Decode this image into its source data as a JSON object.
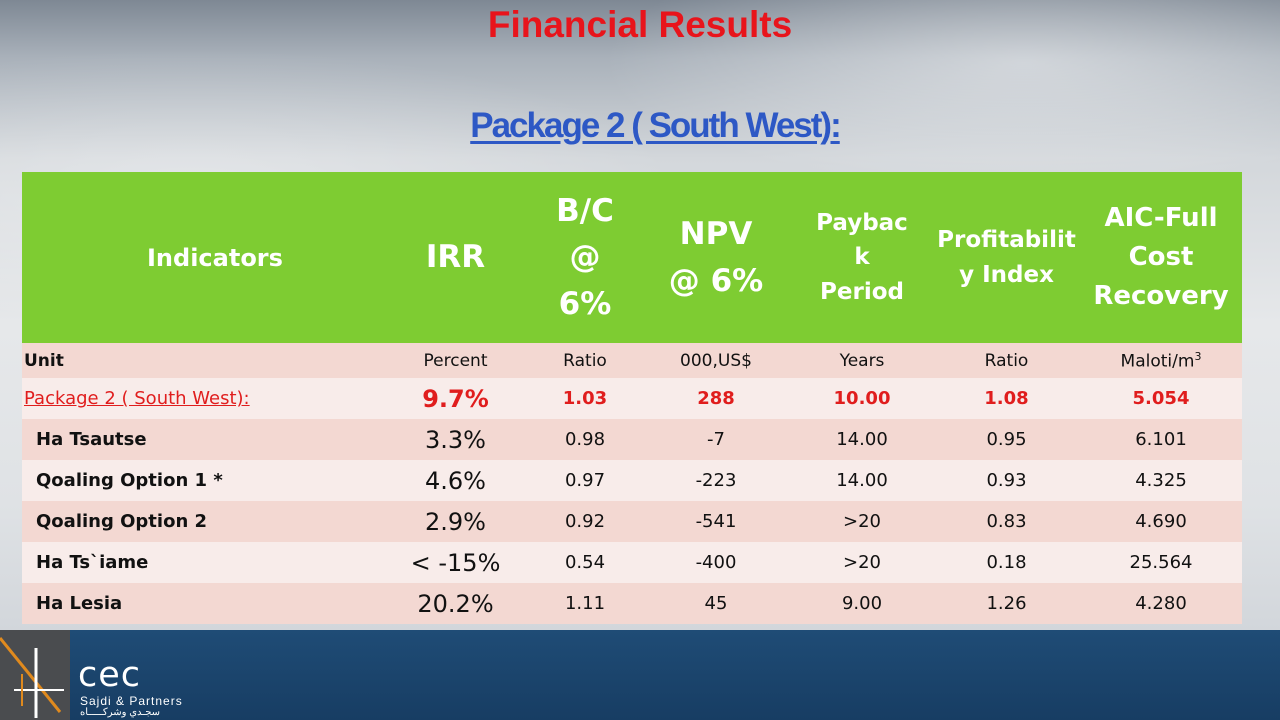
{
  "title": "Financial Results",
  "subtitle": "Package 2 ( South West):",
  "table": {
    "headers": {
      "indicators": "Indicators",
      "irr": "IRR",
      "bc_line1": "B/C",
      "bc_line2": "@",
      "bc_line3": "6%",
      "npv_line1": "NPV",
      "npv_line2": "@ 6%",
      "payback_line1": "Paybac",
      "payback_line2": "k",
      "payback_line3": "Period",
      "profit_line1": "Profitabilit",
      "profit_line2": "y Index",
      "aic_line1": "AIC-Full",
      "aic_line2": "Cost",
      "aic_line3": "Recovery"
    },
    "unit_row": {
      "label": "Unit",
      "irr": "Percent",
      "bc": "Ratio",
      "npv": "000,US$",
      "payback": "Years",
      "profit": "Ratio",
      "aic": "Maloti/m",
      "aic_sup": "3"
    },
    "package_row": {
      "label": "Package 2 ( South West):",
      "irr": "9.7%",
      "bc": "1.03",
      "npv": "288",
      "payback": "10.00",
      "profit": "1.08",
      "aic": "5.054"
    },
    "rows": [
      {
        "label": "Ha Tsautse",
        "irr": "3.3%",
        "bc": "0.98",
        "npv": "-7",
        "payback": "14.00",
        "profit": "0.95",
        "aic": "6.101"
      },
      {
        "label": "Qoaling Option 1 *",
        "irr": "4.6%",
        "bc": "0.97",
        "npv": "-223",
        "payback": "14.00",
        "profit": "0.93",
        "aic": "4.325"
      },
      {
        "label": "Qoaling Option 2",
        "irr": "2.9%",
        "bc": "0.92",
        "npv": "-541",
        "payback": ">20",
        "profit": "0.83",
        "aic": "4.690"
      },
      {
        "label": "Ha Ts`iame",
        "irr": "< -15%",
        "bc": "0.54",
        "npv": "-400",
        "payback": ">20",
        "profit": "0.18",
        "aic": "25.564"
      },
      {
        "label": "Ha Lesia",
        "irr": "20.2%",
        "bc": "1.11",
        "npv": "45",
        "payback": "9.00",
        "profit": "1.26",
        "aic": "4.280"
      }
    ]
  },
  "footer": {
    "brand": "cec",
    "brand_sub": "Sajdi & Partners",
    "brand_ar": "سجـدي وشركـــــاه",
    "footer_color": "#1f4c76",
    "header_color": "#7ecc32",
    "highlight_color": "#e01d1d"
  }
}
